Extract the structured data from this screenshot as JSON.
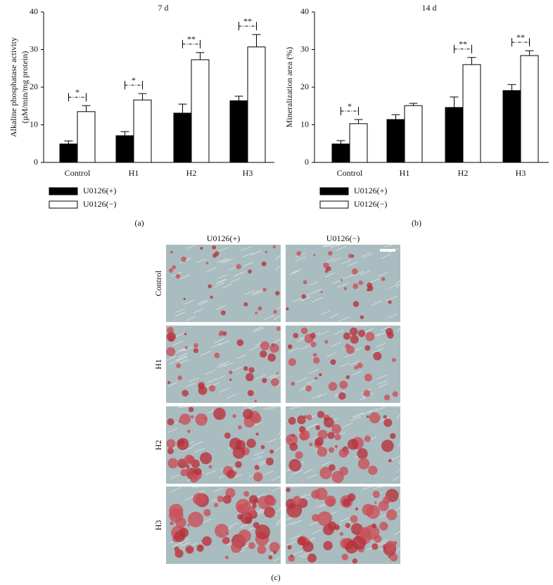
{
  "chart_data": [
    {
      "type": "bar",
      "title": "7 d",
      "panel": "(a)",
      "ylabel": [
        "Alkaline phosphatase activity",
        "(μM/min/mg protein)"
      ],
      "categories": [
        "Control",
        "H1",
        "H2",
        "H3"
      ],
      "series": [
        {
          "name": "U0126(+)",
          "color": "#000000",
          "values": [
            4.9,
            7.1,
            13.1,
            16.4
          ],
          "errors": [
            0.8,
            1.1,
            2.4,
            1.2
          ]
        },
        {
          "name": "U0126(−)",
          "color": "#ffffff",
          "values": [
            13.5,
            16.6,
            27.3,
            30.7
          ],
          "errors": [
            1.6,
            1.7,
            1.9,
            3.3
          ]
        }
      ],
      "significance": [
        "*",
        "*",
        "**",
        "**"
      ],
      "ylim": [
        0,
        40
      ],
      "yticks": [
        0,
        10,
        20,
        30,
        40
      ]
    },
    {
      "type": "bar",
      "title": "14 d",
      "panel": "(b)",
      "ylabel": [
        "Mineralization area (%)"
      ],
      "categories": [
        "Control",
        "H1",
        "H2",
        "H3"
      ],
      "series": [
        {
          "name": "U0126(+)",
          "color": "#000000",
          "values": [
            4.9,
            11.4,
            14.6,
            19.1
          ],
          "errors": [
            0.9,
            1.3,
            2.8,
            1.6
          ]
        },
        {
          "name": "U0126(−)",
          "color": "#ffffff",
          "values": [
            10.3,
            15.1,
            26.0,
            28.4
          ],
          "errors": [
            1.1,
            0.6,
            1.9,
            1.3
          ]
        }
      ],
      "significance": [
        "*",
        null,
        "**",
        "**"
      ],
      "ylim": [
        0,
        40
      ],
      "yticks": [
        0,
        10,
        20,
        30,
        40
      ]
    }
  ],
  "panel_c": {
    "label": "(c)",
    "columns": [
      "U0126(+)",
      "U0126(−)"
    ],
    "rows": [
      "Control",
      "H1",
      "H2",
      "H3"
    ]
  }
}
